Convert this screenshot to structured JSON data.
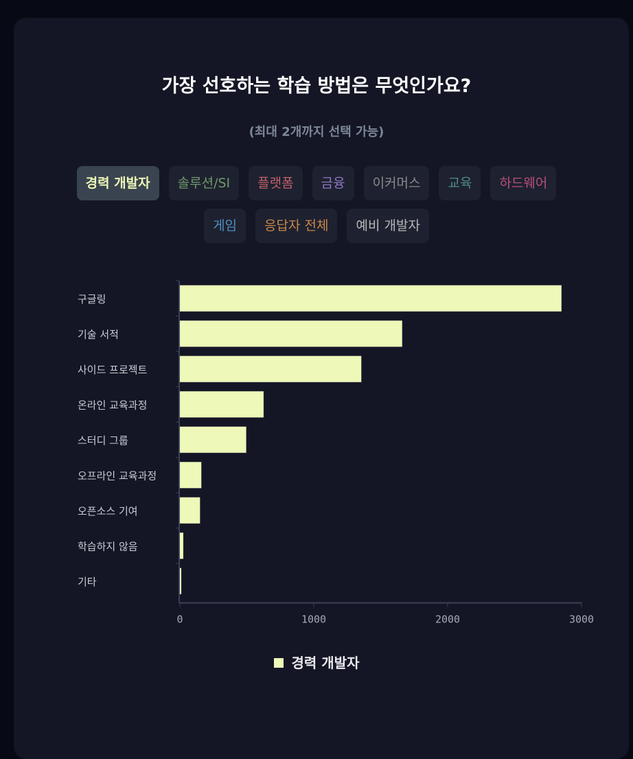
{
  "header": {
    "title": "가장 선호하는 학습 방법은 무엇인가요?",
    "subtitle": "(최대 2개까지 선택 가능)"
  },
  "tabs": [
    {
      "label": "경력 개발자",
      "color": "#ecf7b6",
      "active": true
    },
    {
      "label": "솔루션/SI",
      "color": "#6f9a6a",
      "active": false
    },
    {
      "label": "플랫폼",
      "color": "#c0606a",
      "active": false
    },
    {
      "label": "금융",
      "color": "#8e76c0",
      "active": false
    },
    {
      "label": "이커머스",
      "color": "#8a8a8a",
      "active": false
    },
    {
      "label": "교육",
      "color": "#4f8a86",
      "active": false
    },
    {
      "label": "하드웨어",
      "color": "#b84f78",
      "active": false
    },
    {
      "label": "게임",
      "color": "#4f8fbf",
      "active": false
    },
    {
      "label": "응답자 전체",
      "color": "#c9864a",
      "active": false
    },
    {
      "label": "예비 개발자",
      "color": "#b8b8b8",
      "active": false
    }
  ],
  "chart_data": {
    "type": "bar",
    "orientation": "horizontal",
    "categories": [
      "구글링",
      "기술 서적",
      "사이드 프로젝트",
      "온라인 교육과정",
      "스터디 그룹",
      "오프라인 교육과정",
      "오픈소스 기여",
      "학습하지 않음",
      "기타"
    ],
    "series": [
      {
        "name": "경력 개발자",
        "color": "#eef8b8",
        "values": [
          2850,
          1660,
          1355,
          625,
          495,
          160,
          150,
          25,
          10
        ]
      }
    ],
    "xlim": [
      0,
      3000
    ],
    "xticks": [
      0,
      1000,
      2000,
      3000
    ],
    "grid": false,
    "legend": "bottom"
  }
}
